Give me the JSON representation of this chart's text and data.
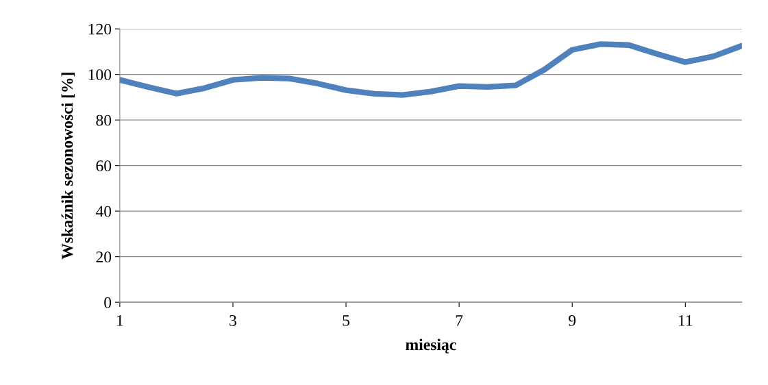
{
  "chart_data": {
    "type": "line",
    "xlabel": "miesiąc",
    "ylabel": "Wskaźnik sezonowości [%]",
    "x": [
      1,
      1.5,
      2,
      2.5,
      3,
      3.5,
      4,
      4.5,
      5,
      5.5,
      6,
      6.5,
      7,
      7.5,
      8,
      8.5,
      9,
      9.5,
      10,
      10.5,
      11,
      11.5,
      12
    ],
    "series": [
      {
        "color": "#4f81bd",
        "values": [
          97.6,
          94.5,
          91.6,
          94,
          97.6,
          98.5,
          98.2,
          96,
          93.1,
          91.5,
          91,
          92.5,
          94.9,
          94.5,
          95.2,
          102,
          110.8,
          113.3,
          112.9,
          109,
          105.4,
          108,
          112.6
        ]
      }
    ],
    "xlim": [
      1,
      12
    ],
    "xticks": [
      1,
      3,
      5,
      7,
      9,
      11
    ],
    "ylim": [
      0,
      120
    ],
    "yticks": [
      0,
      20,
      40,
      60,
      80,
      100,
      120
    ],
    "grid": "y",
    "legend": false,
    "marker": "none",
    "line_style": "solid"
  }
}
